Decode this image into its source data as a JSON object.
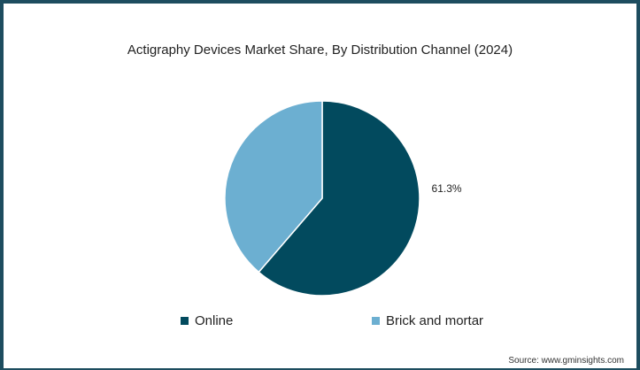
{
  "chart_data": {
    "type": "pie",
    "title": "Actigraphy Devices Market Share, By Distribution Channel (2024)",
    "categories": [
      "Online",
      "Brick and mortar"
    ],
    "values": [
      61.3,
      38.7
    ],
    "data_labels": [
      "61.3%",
      ""
    ],
    "colors": [
      "#024a5e",
      "#6cafd1"
    ],
    "legend_position": "bottom",
    "grid": false
  },
  "legend": {
    "items": [
      {
        "label": "Online",
        "color": "#024a5e"
      },
      {
        "label": "Brick and mortar",
        "color": "#6cafd1"
      }
    ]
  },
  "source": "Source: www.gminsights.com"
}
